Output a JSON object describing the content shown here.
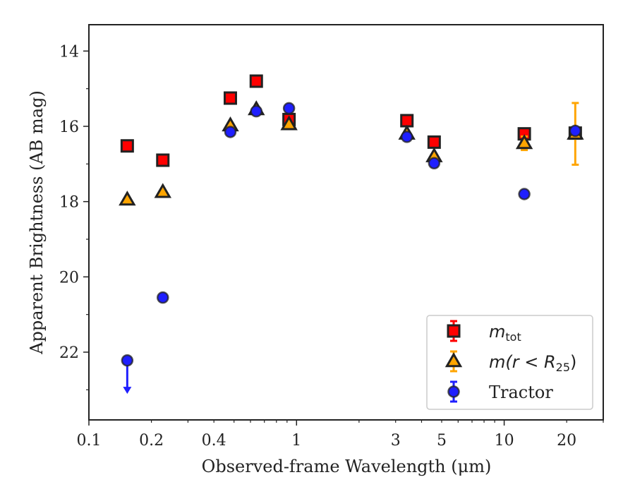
{
  "chart_data": {
    "type": "scatter",
    "xlabel": "Observed-frame Wavelength (μm)",
    "ylabel": "Apparent Brightness (AB mag)",
    "x_scale": "log",
    "xlim": [
      0.1,
      30
    ],
    "ylim": [
      23.8,
      13.3
    ],
    "y_inverted": true,
    "x_ticks": [
      {
        "value": 0.1,
        "label": "0.1"
      },
      {
        "value": 0.2,
        "label": "0.2"
      },
      {
        "value": 0.4,
        "label": "0.4"
      },
      {
        "value": 1,
        "label": "1"
      },
      {
        "value": 3,
        "label": "3"
      },
      {
        "value": 5,
        "label": "5"
      },
      {
        "value": 10,
        "label": "10"
      },
      {
        "value": 20,
        "label": "20"
      }
    ],
    "y_ticks": [
      {
        "value": 14,
        "label": "14"
      },
      {
        "value": 16,
        "label": "16"
      },
      {
        "value": 18,
        "label": "18"
      },
      {
        "value": 20,
        "label": "20"
      },
      {
        "value": 22,
        "label": "22"
      }
    ],
    "grid": false,
    "legend_position": "lower-right",
    "series": [
      {
        "name": "m_tot",
        "legend_label": "m",
        "legend_subscript": "tot",
        "legend_suffix": "",
        "marker": "square",
        "color": "#ff0000",
        "edge_color": "#222222",
        "points": [
          {
            "x": 0.153,
            "y": 16.52
          },
          {
            "x": 0.227,
            "y": 16.9
          },
          {
            "x": 0.48,
            "y": 15.25
          },
          {
            "x": 0.64,
            "y": 14.8
          },
          {
            "x": 0.92,
            "y": 15.82
          },
          {
            "x": 3.4,
            "y": 15.85
          },
          {
            "x": 4.6,
            "y": 16.42
          },
          {
            "x": 12.5,
            "y": 16.2
          },
          {
            "x": 22.0,
            "y": 16.18
          }
        ]
      },
      {
        "name": "m(r < R_25)",
        "legend_label": "m(r < R",
        "legend_subscript": "25",
        "legend_suffix": ")",
        "marker": "triangle",
        "color": "#ffa500",
        "edge_color": "#222222",
        "points": [
          {
            "x": 0.153,
            "y": 17.95
          },
          {
            "x": 0.227,
            "y": 17.75
          },
          {
            "x": 0.48,
            "y": 15.98
          },
          {
            "x": 0.64,
            "y": 15.55
          },
          {
            "x": 0.92,
            "y": 15.95
          },
          {
            "x": 3.4,
            "y": 16.2
          },
          {
            "x": 4.6,
            "y": 16.8
          },
          {
            "x": 12.5,
            "y": 16.45,
            "yerr": 0.18
          },
          {
            "x": 22.0,
            "y": 16.2,
            "yerr": 0.82
          }
        ]
      },
      {
        "name": "Tractor",
        "legend_label": "Tractor",
        "legend_subscript": "",
        "legend_suffix": "",
        "marker": "circle",
        "color": "#1f1fff",
        "edge_color": "#222222",
        "points": [
          {
            "x": 0.153,
            "y": 22.22,
            "upper_limit": true
          },
          {
            "x": 0.227,
            "y": 20.55
          },
          {
            "x": 0.48,
            "y": 16.15
          },
          {
            "x": 0.64,
            "y": 15.6
          },
          {
            "x": 0.92,
            "y": 15.52
          },
          {
            "x": 3.4,
            "y": 16.28
          },
          {
            "x": 4.6,
            "y": 16.98
          },
          {
            "x": 12.5,
            "y": 17.8
          },
          {
            "x": 22.0,
            "y": 16.12
          }
        ]
      }
    ]
  }
}
